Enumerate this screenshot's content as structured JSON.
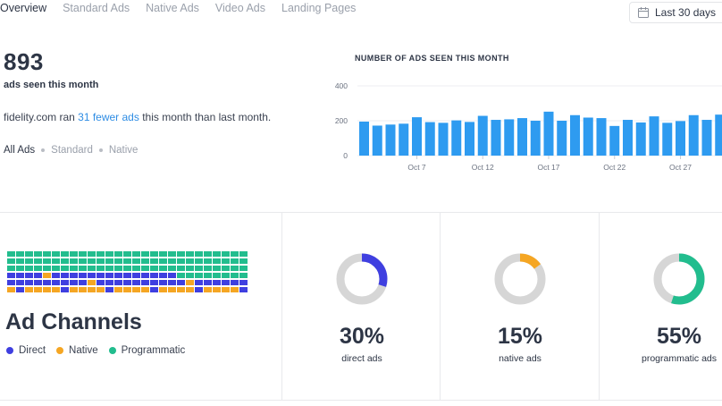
{
  "tabs": [
    "Overview",
    "Standard Ads",
    "Native Ads",
    "Video Ads",
    "Landing Pages"
  ],
  "date_range": {
    "label": "Last 30 days",
    "icon": "calendar-icon"
  },
  "summary": {
    "count": "893",
    "count_label": "ads seen this month",
    "compare_prefix": "fidelity.com ran ",
    "compare_highlight": "31 fewer ads",
    "compare_suffix": " this month than last month."
  },
  "filters": [
    "All Ads",
    "Standard",
    "Native"
  ],
  "chart_data": {
    "type": "bar",
    "title": "NUMBER OF ADS SEEN THIS MONTH",
    "ylim": [
      0,
      400
    ],
    "yticks": [
      0,
      200,
      400
    ],
    "xtick_labels": [
      {
        "index": 4,
        "label": "Oct 7"
      },
      {
        "index": 9,
        "label": "Oct 12"
      },
      {
        "index": 14,
        "label": "Oct 17"
      },
      {
        "index": 19,
        "label": "Oct 22"
      },
      {
        "index": 24,
        "label": "Oct 27"
      }
    ],
    "values": [
      195,
      172,
      178,
      183,
      220,
      192,
      188,
      202,
      193,
      228,
      205,
      208,
      215,
      200,
      252,
      200,
      232,
      218,
      215,
      170,
      205,
      190,
      225,
      188,
      198,
      232,
      205,
      235
    ],
    "color": "#2e9bf0"
  },
  "channels": {
    "title": "Ad Channels",
    "legend": [
      {
        "name": "Direct",
        "color": "#3f3fe0"
      },
      {
        "name": "Native",
        "color": "#f5a623"
      },
      {
        "name": "Programmatic",
        "color": "#22bd8e"
      }
    ],
    "stats": [
      {
        "pct": "30%",
        "value": 30,
        "caption": "direct ads",
        "color": "#3f3fe0"
      },
      {
        "pct": "15%",
        "value": 15,
        "caption": "native ads",
        "color": "#f5a623"
      },
      {
        "pct": "55%",
        "value": 55,
        "caption": "programmatic ads",
        "color": "#22bd8e"
      }
    ]
  }
}
